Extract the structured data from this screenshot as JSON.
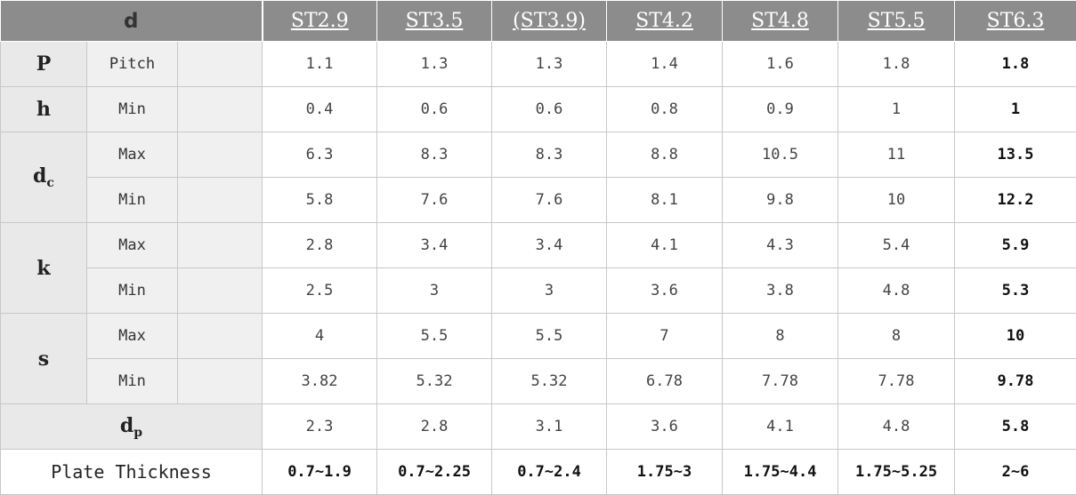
{
  "header": {
    "param_label": "d",
    "sizes": [
      "ST2.9",
      "ST3.5",
      "(ST3.9)",
      "ST4.2",
      "ST4.8",
      "ST5.5",
      "ST6.3"
    ]
  },
  "rows": [
    {
      "param": "P",
      "sub": "Pitch",
      "values": [
        "1.1",
        "1.3",
        "1.3",
        "1.4",
        "1.6",
        "1.8",
        "1.8"
      ]
    },
    {
      "param": "h",
      "sub": "Min",
      "values": [
        "0.4",
        "0.6",
        "0.6",
        "0.8",
        "0.9",
        "1",
        "1"
      ]
    },
    {
      "param": "d",
      "param_sub": "c",
      "sub_max": "Max",
      "sub_min": "Min",
      "max": [
        "6.3",
        "8.3",
        "8.3",
        "8.8",
        "10.5",
        "11",
        "13.5"
      ],
      "min": [
        "5.8",
        "7.6",
        "7.6",
        "8.1",
        "9.8",
        "10",
        "12.2"
      ]
    },
    {
      "param": "k",
      "sub_max": "Max",
      "sub_min": "Min",
      "max": [
        "2.8",
        "3.4",
        "3.4",
        "4.1",
        "4.3",
        "5.4",
        "5.9"
      ],
      "min": [
        "2.5",
        "3",
        "3",
        "3.6",
        "3.8",
        "4.8",
        "5.3"
      ]
    },
    {
      "param": "s",
      "sub_max": "Max",
      "sub_min": "Min",
      "max": [
        "4",
        "5.5",
        "5.5",
        "7",
        "8",
        "8",
        "10"
      ],
      "min": [
        "3.82",
        "5.32",
        "5.32",
        "6.78",
        "7.78",
        "7.78",
        "9.78"
      ]
    },
    {
      "param": "d",
      "param_sub": "p",
      "values": [
        "2.3",
        "2.8",
        "3.1",
        "3.6",
        "4.1",
        "4.8",
        "5.8"
      ]
    },
    {
      "param": "Plate Thickness",
      "values": [
        "0.7~1.9",
        "0.7~2.25",
        "0.7~2.4",
        "1.75~3",
        "1.75~4.4",
        "1.75~5.25",
        "2~6"
      ]
    }
  ]
}
